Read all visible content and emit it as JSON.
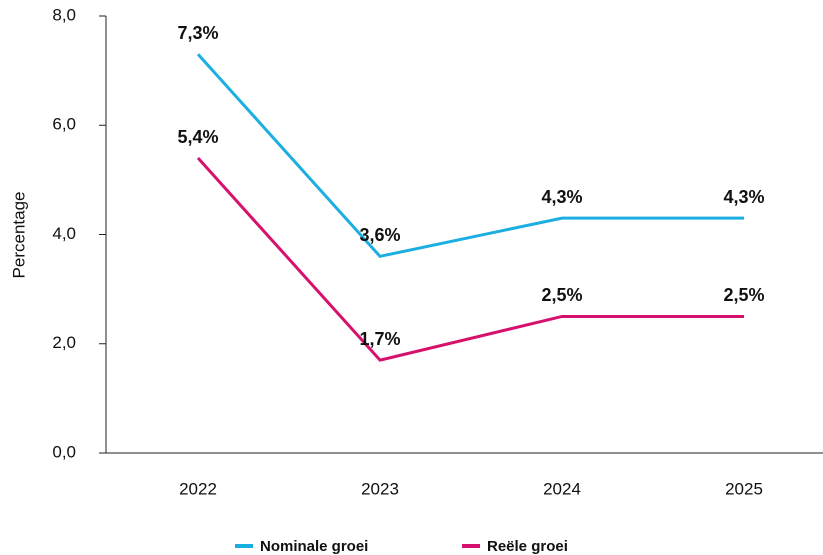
{
  "chart_data": {
    "type": "line",
    "y_label": "Percentage",
    "categories": [
      "2022",
      "2023",
      "2024",
      "2025"
    ],
    "series": [
      {
        "name": "Nominale groei",
        "color": "#1aafe0",
        "values": [
          7.3,
          3.6,
          4.3,
          4.3
        ],
        "value_labels": [
          "7,3%",
          "3,6%",
          "4,3%",
          "4,3%"
        ]
      },
      {
        "name": "Reële groei",
        "color": "#d6106c",
        "values": [
          5.4,
          1.7,
          2.5,
          2.5
        ],
        "value_labels": [
          "5,4%",
          "1,7%",
          "2,5%",
          "2,5%"
        ]
      }
    ],
    "ylim": [
      0,
      8
    ],
    "yticks": [
      {
        "value": 0,
        "label": "0,0"
      },
      {
        "value": 2,
        "label": "2,0"
      },
      {
        "value": 4,
        "label": "4,0"
      },
      {
        "value": 6,
        "label": "6,0"
      },
      {
        "value": 8,
        "label": "8,0"
      }
    ],
    "grid": false,
    "legend": "bottom"
  }
}
